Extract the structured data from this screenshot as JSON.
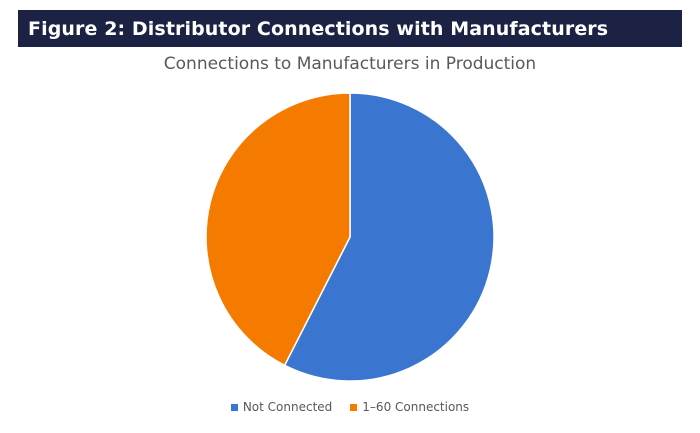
{
  "figure": {
    "title": "Figure 2: Distributor Connections with Manufacturers"
  },
  "chart_data": {
    "type": "pie",
    "title": "Connections to Manufacturers in Production",
    "categories": [
      "Not Connected",
      "1–60 Connections"
    ],
    "values": [
      57.5,
      42.5
    ],
    "colors": [
      "#3a75cf",
      "#f47b00"
    ],
    "legend_position": "bottom",
    "start_angle_deg": 0,
    "direction": "clockwise"
  }
}
